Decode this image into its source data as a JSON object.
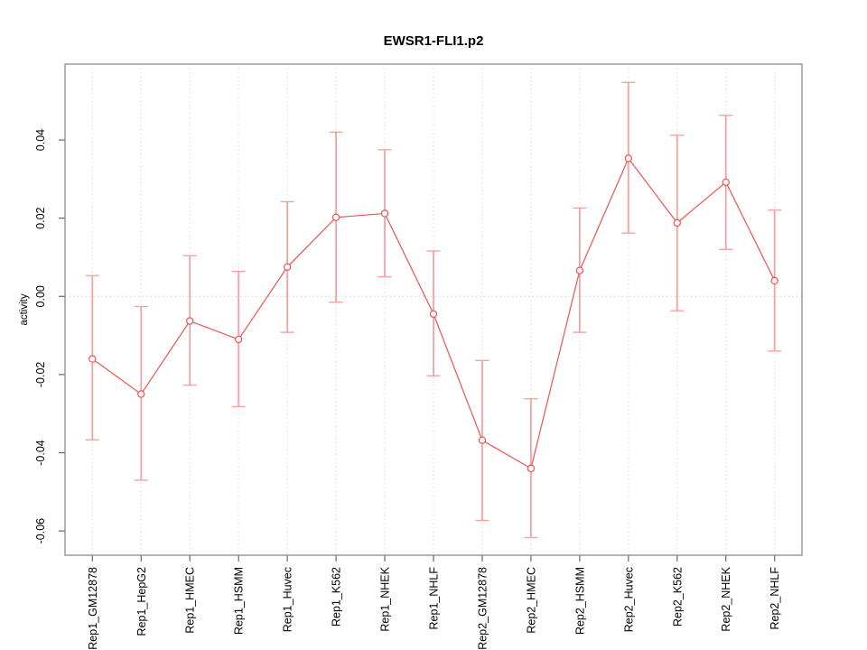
{
  "figure": {
    "title": "EWSR1-FLI1.p2",
    "y_axis_label": "activity"
  },
  "chart_data": {
    "type": "line",
    "title": "EWSR1-FLI1.p2",
    "xlabel": "",
    "ylabel": "activity",
    "legend_position": "none",
    "grid": "vertical dotted gridlines at each category; dotted horizontal line at y=0",
    "error_bars": true,
    "point_marker": "open-circle",
    "categories": [
      "Rep1_GM12878",
      "Rep1_HepG2",
      "Rep1_HMEC",
      "Rep1_HSMM",
      "Rep1_Huvec",
      "Rep1_K562",
      "Rep1_NHEK",
      "Rep1_NHLF",
      "Rep2_GM12878",
      "Rep2_HMEC",
      "Rep2_HSMM",
      "Rep2_Huvec",
      "Rep2_K562",
      "Rep2_NHEK",
      "Rep2_NHLF"
    ],
    "series": [
      {
        "name": "activity",
        "values": [
          -0.016,
          -0.025,
          -0.0063,
          -0.011,
          0.0075,
          0.0202,
          0.0212,
          -0.0045,
          -0.0368,
          -0.044,
          0.0066,
          0.0353,
          0.0188,
          0.0292,
          0.004
        ],
        "lower": [
          -0.0367,
          -0.047,
          -0.0227,
          -0.0282,
          -0.0092,
          -0.0015,
          0.005,
          -0.0203,
          -0.0573,
          -0.0617,
          -0.0092,
          0.0162,
          -0.0037,
          0.012,
          -0.014
        ],
        "upper": [
          0.0053,
          -0.0026,
          0.0104,
          0.0064,
          0.0242,
          0.042,
          0.0375,
          0.0116,
          -0.0164,
          -0.0262,
          0.0226,
          0.0547,
          0.0412,
          0.0463,
          0.0221
        ]
      }
    ],
    "yticks": [
      -0.06,
      -0.04,
      -0.02,
      0.0,
      0.02,
      0.04
    ],
    "ylim": [
      -0.0662,
      0.0594
    ],
    "colors": {
      "series_line": "#ee5252",
      "point_stroke": "#ee5252",
      "point_fill": "#ffffff",
      "error_bar": "#f7a1a1",
      "gridline": "#dedede",
      "zero_line": "#d9d9d9",
      "box": "#8c8c8c",
      "tick": "#666666",
      "text": "#000000"
    }
  }
}
